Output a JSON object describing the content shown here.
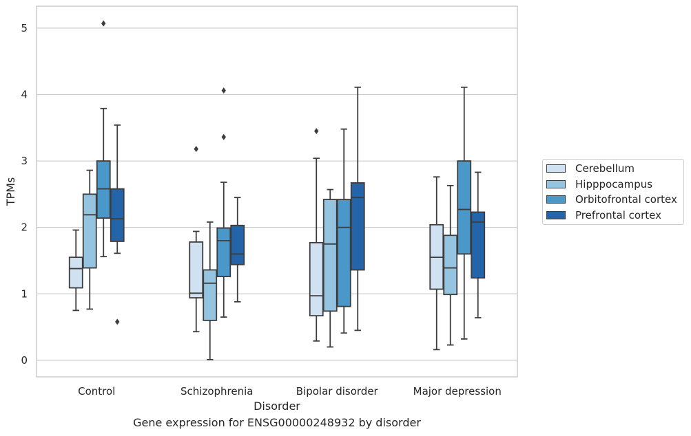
{
  "chart_data": {
    "type": "boxplot",
    "title": "Gene expression for ENSG00000248932 by disorder",
    "xlabel": "Disorder",
    "ylabel": "TPMs",
    "ylim": [
      -0.25,
      5.33
    ],
    "yticks": [
      0,
      1,
      2,
      3,
      4,
      5
    ],
    "grid": true,
    "legend_position": "right",
    "categories": [
      "Control",
      "Schizophrenia",
      "Bipolar disorder",
      "Major depression"
    ],
    "series": [
      {
        "name": "Cerebellum",
        "color": "#d0e1f2",
        "boxes": [
          {
            "whislo": 0.75,
            "q1": 1.09,
            "med": 1.38,
            "q3": 1.55,
            "whishi": 1.96,
            "fliers": []
          },
          {
            "whislo": 0.43,
            "q1": 0.94,
            "med": 1.01,
            "q3": 1.78,
            "whishi": 1.94,
            "fliers": [
              3.18
            ]
          },
          {
            "whislo": 0.29,
            "q1": 0.67,
            "med": 0.97,
            "q3": 1.77,
            "whishi": 3.04,
            "fliers": [
              3.45
            ]
          },
          {
            "whislo": 0.16,
            "q1": 1.07,
            "med": 1.55,
            "q3": 2.04,
            "whishi": 2.76,
            "fliers": []
          }
        ]
      },
      {
        "name": "Hipppocampus",
        "color": "#94c4df",
        "boxes": [
          {
            "whislo": 0.77,
            "q1": 1.39,
            "med": 2.19,
            "q3": 2.5,
            "whishi": 2.86,
            "fliers": []
          },
          {
            "whislo": 0.01,
            "q1": 0.6,
            "med": 1.16,
            "q3": 1.36,
            "whishi": 2.08,
            "fliers": []
          },
          {
            "whislo": 0.2,
            "q1": 0.74,
            "med": 1.75,
            "q3": 2.42,
            "whishi": 2.57,
            "fliers": []
          },
          {
            "whislo": 0.23,
            "q1": 0.99,
            "med": 1.39,
            "q3": 1.88,
            "whishi": 2.63,
            "fliers": []
          }
        ]
      },
      {
        "name": "Orbitofrontal cortex",
        "color": "#4a98c9",
        "boxes": [
          {
            "whislo": 1.56,
            "q1": 2.14,
            "med": 2.58,
            "q3": 3.0,
            "whishi": 3.79,
            "fliers": [
              5.07
            ]
          },
          {
            "whislo": 0.65,
            "q1": 1.26,
            "med": 1.8,
            "q3": 1.99,
            "whishi": 2.68,
            "fliers": [
              3.36,
              4.06
            ]
          },
          {
            "whislo": 0.41,
            "q1": 0.81,
            "med": 2.0,
            "q3": 2.42,
            "whishi": 3.48,
            "fliers": []
          },
          {
            "whislo": 0.32,
            "q1": 1.6,
            "med": 2.27,
            "q3": 3.0,
            "whishi": 4.11,
            "fliers": []
          }
        ]
      },
      {
        "name": "Prefrontal cortex",
        "color": "#2464a8",
        "boxes": [
          {
            "whislo": 1.61,
            "q1": 1.79,
            "med": 2.13,
            "q3": 2.58,
            "whishi": 3.54,
            "fliers": [
              0.58
            ]
          },
          {
            "whislo": 0.88,
            "q1": 1.44,
            "med": 1.6,
            "q3": 2.03,
            "whishi": 2.45,
            "fliers": []
          },
          {
            "whislo": 0.45,
            "q1": 1.36,
            "med": 2.45,
            "q3": 2.67,
            "whishi": 4.11,
            "fliers": []
          },
          {
            "whislo": 0.64,
            "q1": 1.24,
            "med": 2.08,
            "q3": 2.23,
            "whishi": 2.83,
            "fliers": []
          }
        ]
      }
    ]
  }
}
